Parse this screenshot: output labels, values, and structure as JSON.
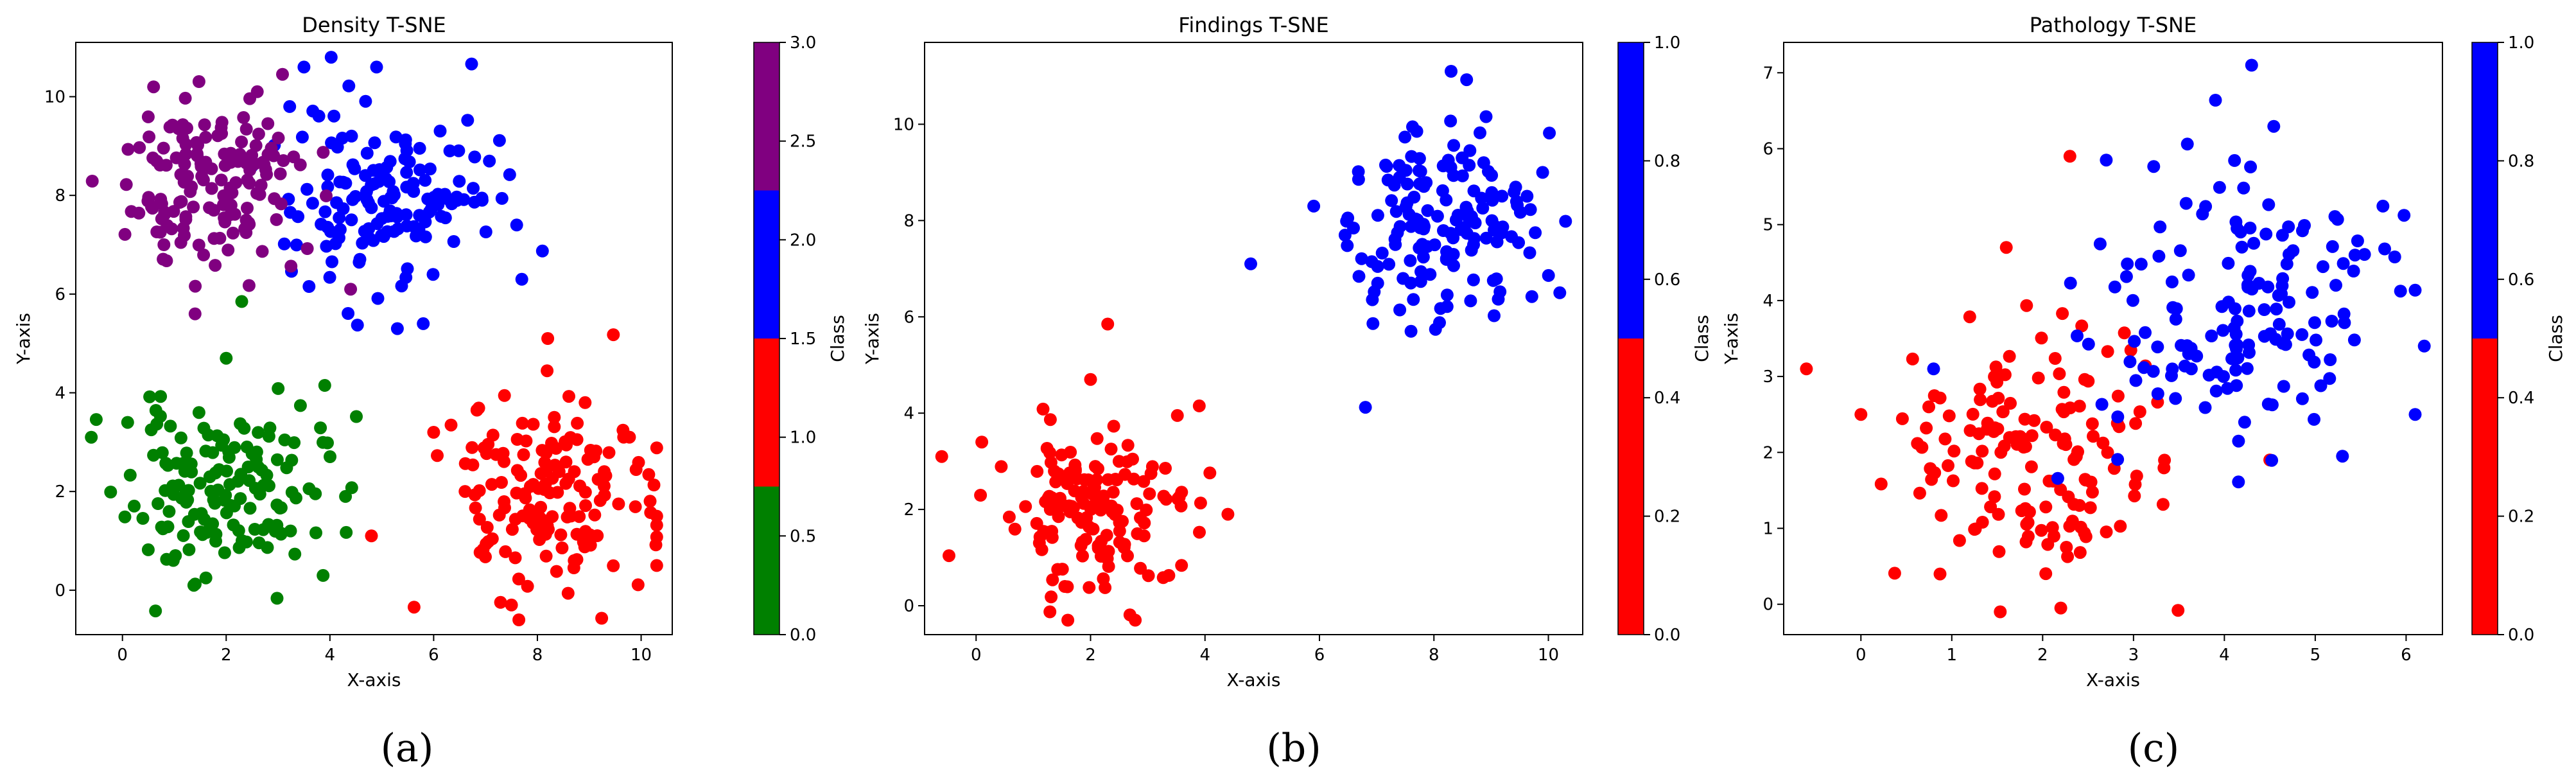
{
  "chart_data": [
    {
      "type": "scatter",
      "panel_label": "(a)",
      "title": "Density T-SNE",
      "xlabel": "X-axis",
      "ylabel": "Y-axis",
      "xlim": [
        -0.9,
        10.6
      ],
      "ylim": [
        -0.9,
        11.1
      ],
      "xticks": [
        0,
        2,
        4,
        6,
        8,
        10
      ],
      "yticks": [
        0,
        2,
        4,
        6,
        8,
        10
      ],
      "colorbar": {
        "label": "Class",
        "range": [
          0,
          3
        ],
        "ticks": [
          "0.0",
          "0.5",
          "1.0",
          "1.5",
          "2.0",
          "2.5",
          "3.0"
        ],
        "segments": [
          {
            "from": 0,
            "to": 0.75,
            "color": "#008000"
          },
          {
            "from": 0.75,
            "to": 1.5,
            "color": "#ff0000"
          },
          {
            "from": 1.5,
            "to": 2.25,
            "color": "#0000ff"
          },
          {
            "from": 2.25,
            "to": 3.0,
            "color": "#800080"
          }
        ]
      },
      "series": [
        {
          "class": 0,
          "color": "#008000",
          "center": [
            1.9,
            2.0
          ],
          "spread": [
            0.9,
            0.85
          ],
          "n": 150,
          "seed": 11,
          "extra": [
            [
              -0.6,
              3.1
            ],
            [
              2.3,
              5.85
            ],
            [
              3.9,
              4.15
            ],
            [
              4.3,
              1.9
            ],
            [
              0.1,
              3.4
            ],
            [
              2.0,
              4.7
            ]
          ]
        },
        {
          "class": 1,
          "color": "#ff0000",
          "center": [
            8.2,
            1.9
          ],
          "spread": [
            1.0,
            1.0
          ],
          "n": 150,
          "seed": 23,
          "extra": [
            [
              4.8,
              1.1
            ],
            [
              6.0,
              3.2
            ],
            [
              8.2,
              5.1
            ],
            [
              10.3,
              0.5
            ],
            [
              7.5,
              -0.3
            ],
            [
              10.3,
              1.5
            ]
          ]
        },
        {
          "class": 2,
          "color": "#0000ff",
          "center": [
            5.2,
            8.0
          ],
          "spread": [
            1.0,
            0.95
          ],
          "n": 150,
          "seed": 37,
          "extra": [
            [
              4.9,
              10.6
            ],
            [
              5.3,
              5.3
            ],
            [
              7.7,
              6.3
            ],
            [
              5.8,
              5.4
            ],
            [
              3.5,
              10.6
            ],
            [
              7.6,
              7.4
            ]
          ]
        },
        {
          "class": 3,
          "color": "#800080",
          "center": [
            1.6,
            8.2
          ],
          "spread": [
            0.8,
            0.85
          ],
          "n": 150,
          "seed": 51,
          "extra": [
            [
              0.6,
              10.2
            ],
            [
              1.4,
              5.6
            ],
            [
              4.4,
              6.1
            ],
            [
              0.8,
              7.0
            ],
            [
              2.6,
              10.1
            ]
          ]
        }
      ]
    },
    {
      "type": "scatter",
      "panel_label": "(b)",
      "title": "Findings T-SNE",
      "xlabel": "X-axis",
      "ylabel": "Y-axis",
      "xlim": [
        -0.9,
        10.6
      ],
      "ylim": [
        -0.6,
        11.7
      ],
      "xticks": [
        0,
        2,
        4,
        6,
        8,
        10
      ],
      "yticks": [
        0,
        2,
        4,
        6,
        8,
        10
      ],
      "colorbar": {
        "label": "Class",
        "range": [
          0,
          1
        ],
        "ticks": [
          "0.0",
          "0.2",
          "0.4",
          "0.6",
          "0.8",
          "1.0"
        ],
        "segments": [
          {
            "from": 0,
            "to": 0.5,
            "color": "#ff0000"
          },
          {
            "from": 0.5,
            "to": 1.0,
            "color": "#0000ff"
          }
        ]
      },
      "series": [
        {
          "class": 0,
          "color": "#ff0000",
          "center": [
            1.9,
            2.0
          ],
          "spread": [
            0.9,
            0.85
          ],
          "n": 150,
          "seed": 61,
          "extra": [
            [
              -0.6,
              3.1
            ],
            [
              2.3,
              5.85
            ],
            [
              3.9,
              4.15
            ],
            [
              4.4,
              1.9
            ],
            [
              2.0,
              4.7
            ],
            [
              0.1,
              3.4
            ]
          ]
        },
        {
          "class": 1,
          "color": "#0000ff",
          "center": [
            8.2,
            7.9
          ],
          "spread": [
            0.9,
            1.0
          ],
          "n": 150,
          "seed": 73,
          "extra": [
            [
              4.8,
              7.1
            ],
            [
              8.3,
              11.1
            ],
            [
              7.6,
              5.7
            ],
            [
              5.9,
              8.3
            ],
            [
              10.2,
              6.5
            ],
            [
              9.9,
              9.0
            ]
          ]
        }
      ]
    },
    {
      "type": "scatter",
      "panel_label": "(c)",
      "title": "Pathology T-SNE",
      "xlabel": "X-axis",
      "ylabel": "Y-axis",
      "xlim": [
        -0.85,
        6.4
      ],
      "ylim": [
        -0.4,
        7.4
      ],
      "xticks": [
        0,
        1,
        2,
        3,
        4,
        5,
        6
      ],
      "yticks": [
        0,
        1,
        2,
        3,
        4,
        5,
        6,
        7
      ],
      "colorbar": {
        "label": "Class",
        "range": [
          0,
          1
        ],
        "ticks": [
          "0.0",
          "0.2",
          "0.4",
          "0.6",
          "0.8",
          "1.0"
        ],
        "segments": [
          {
            "from": 0,
            "to": 0.5,
            "color": "#ff0000"
          },
          {
            "from": 0.5,
            "to": 1.0,
            "color": "#0000ff"
          }
        ]
      },
      "series": [
        {
          "class": 0,
          "color": "#ff0000",
          "center": [
            1.8,
            2.0
          ],
          "spread": [
            0.75,
            0.85
          ],
          "n": 150,
          "seed": 83,
          "extra": [
            [
              -0.6,
              3.1
            ],
            [
              2.3,
              5.9
            ],
            [
              2.2,
              -0.05
            ],
            [
              4.5,
              1.9
            ],
            [
              0.0,
              2.5
            ],
            [
              1.6,
              4.7
            ]
          ]
        },
        {
          "class": 1,
          "color": "#0000ff",
          "center": [
            4.1,
            3.9
          ],
          "spread": [
            0.85,
            1.0
          ],
          "n": 150,
          "seed": 97,
          "extra": [
            [
              4.3,
              7.1
            ],
            [
              6.2,
              3.4
            ],
            [
              5.3,
              1.95
            ],
            [
              2.7,
              5.85
            ],
            [
              0.8,
              3.1
            ],
            [
              6.1,
              2.5
            ]
          ]
        }
      ]
    }
  ]
}
